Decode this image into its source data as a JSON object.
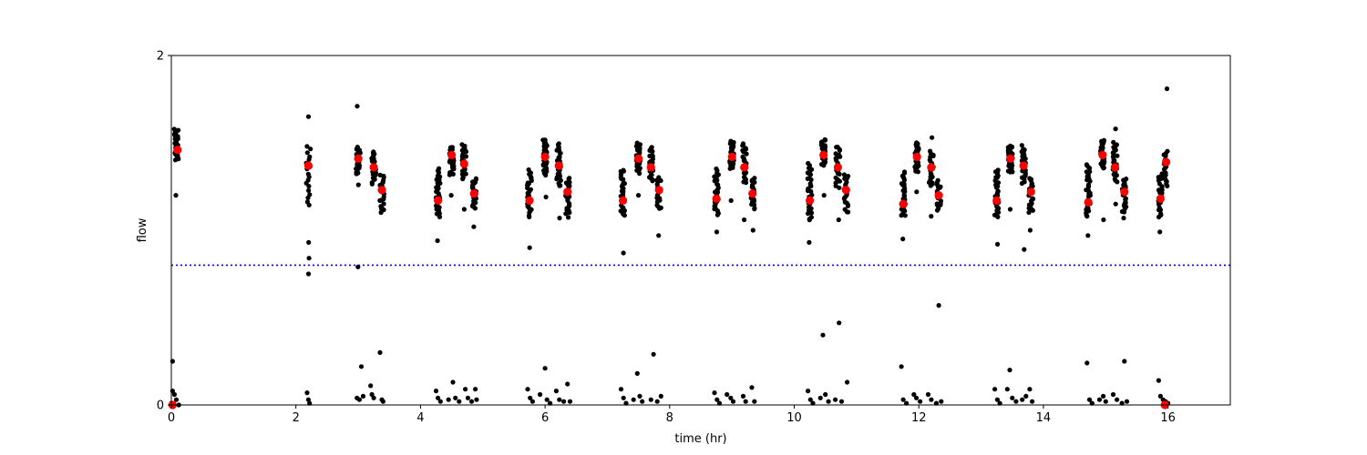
{
  "chart_data": {
    "type": "scatter",
    "title": "",
    "xlabel": "time (hr)",
    "ylabel": "flow",
    "xlim": [
      0,
      17
    ],
    "ylim": [
      0,
      2
    ],
    "xticks": [
      0,
      2,
      4,
      6,
      8,
      10,
      12,
      14,
      16
    ],
    "yticks": [
      0,
      2
    ],
    "grid": false,
    "colors": {
      "samples": "#000000",
      "means": "#ff0000",
      "threshold": "#0000ff"
    },
    "threshold": {
      "y": 0.8,
      "style": "dotted"
    },
    "sample_clusters": [
      {
        "x": 0.08,
        "low": 1.4,
        "high": 1.58,
        "n": 30,
        "outliers": [
          1.2
        ]
      },
      {
        "x": 2.2,
        "low": 1.15,
        "high": 1.48,
        "n": 18,
        "outliers": [
          1.65,
          0.93,
          0.84,
          0.75
        ]
      },
      {
        "x": 3.0,
        "low": 1.32,
        "high": 1.47,
        "n": 28,
        "outliers": [
          1.71,
          1.26,
          0.79
        ]
      },
      {
        "x": 3.25,
        "low": 1.27,
        "high": 1.45,
        "n": 22,
        "outliers": []
      },
      {
        "x": 3.38,
        "low": 1.1,
        "high": 1.32,
        "n": 22,
        "outliers": []
      },
      {
        "x": 4.28,
        "low": 1.08,
        "high": 1.35,
        "n": 30,
        "outliers": [
          0.94
        ]
      },
      {
        "x": 4.5,
        "low": 1.32,
        "high": 1.48,
        "n": 28,
        "outliers": [
          1.2
        ]
      },
      {
        "x": 4.7,
        "low": 1.3,
        "high": 1.49,
        "n": 26,
        "outliers": [
          1.12
        ]
      },
      {
        "x": 4.86,
        "low": 1.12,
        "high": 1.3,
        "n": 20,
        "outliers": [
          1.02
        ]
      },
      {
        "x": 5.75,
        "low": 1.08,
        "high": 1.34,
        "n": 30,
        "outliers": [
          0.9
        ]
      },
      {
        "x": 6.0,
        "low": 1.32,
        "high": 1.52,
        "n": 32,
        "outliers": [
          1.19
        ]
      },
      {
        "x": 6.22,
        "low": 1.25,
        "high": 1.5,
        "n": 28,
        "outliers": [
          1.07
        ]
      },
      {
        "x": 6.36,
        "low": 1.08,
        "high": 1.3,
        "n": 24,
        "outliers": []
      },
      {
        "x": 7.25,
        "low": 1.08,
        "high": 1.35,
        "n": 30,
        "outliers": [
          0.87
        ]
      },
      {
        "x": 7.5,
        "low": 1.33,
        "high": 1.5,
        "n": 28,
        "outliers": [
          1.2
        ]
      },
      {
        "x": 7.7,
        "low": 1.28,
        "high": 1.48,
        "n": 24,
        "outliers": []
      },
      {
        "x": 7.83,
        "low": 1.12,
        "high": 1.3,
        "n": 20,
        "outliers": [
          0.97
        ]
      },
      {
        "x": 8.75,
        "low": 1.08,
        "high": 1.35,
        "n": 30,
        "outliers": [
          0.99
        ]
      },
      {
        "x": 9.0,
        "low": 1.35,
        "high": 1.51,
        "n": 30,
        "outliers": [
          1.17
        ]
      },
      {
        "x": 9.2,
        "low": 1.27,
        "high": 1.5,
        "n": 26,
        "outliers": [
          1.06
        ]
      },
      {
        "x": 9.33,
        "low": 1.12,
        "high": 1.3,
        "n": 20,
        "outliers": [
          1.0
        ]
      },
      {
        "x": 10.25,
        "low": 1.06,
        "high": 1.38,
        "n": 34,
        "outliers": [
          0.93
        ]
      },
      {
        "x": 10.47,
        "low": 1.37,
        "high": 1.52,
        "n": 32,
        "outliers": [
          1.2
        ]
      },
      {
        "x": 10.7,
        "low": 1.25,
        "high": 1.48,
        "n": 26,
        "outliers": [
          1.06
        ]
      },
      {
        "x": 10.83,
        "low": 1.1,
        "high": 1.32,
        "n": 22,
        "outliers": []
      },
      {
        "x": 11.75,
        "low": 1.08,
        "high": 1.33,
        "n": 28,
        "outliers": [
          0.95
        ]
      },
      {
        "x": 11.97,
        "low": 1.33,
        "high": 1.5,
        "n": 30,
        "outliers": [
          1.22
        ]
      },
      {
        "x": 12.2,
        "low": 1.25,
        "high": 1.45,
        "n": 24,
        "outliers": [
          1.53,
          1.08
        ]
      },
      {
        "x": 12.32,
        "low": 1.12,
        "high": 1.28,
        "n": 20,
        "outliers": []
      },
      {
        "x": 13.25,
        "low": 1.08,
        "high": 1.35,
        "n": 30,
        "outliers": [
          0.92
        ]
      },
      {
        "x": 13.47,
        "low": 1.33,
        "high": 1.49,
        "n": 30,
        "outliers": [
          1.12
        ]
      },
      {
        "x": 13.68,
        "low": 1.27,
        "high": 1.48,
        "n": 26,
        "outliers": [
          0.89
        ]
      },
      {
        "x": 13.8,
        "low": 1.1,
        "high": 1.3,
        "n": 22,
        "outliers": [
          1.0
        ]
      },
      {
        "x": 14.72,
        "low": 1.08,
        "high": 1.38,
        "n": 32,
        "outliers": [
          0.97
        ]
      },
      {
        "x": 14.95,
        "low": 1.35,
        "high": 1.52,
        "n": 34,
        "outliers": [
          1.06
        ]
      },
      {
        "x": 15.15,
        "low": 1.28,
        "high": 1.5,
        "n": 26,
        "outliers": [
          1.58,
          1.15
        ]
      },
      {
        "x": 15.3,
        "low": 1.1,
        "high": 1.3,
        "n": 22,
        "outliers": [
          1.07
        ]
      },
      {
        "x": 15.88,
        "low": 1.08,
        "high": 1.32,
        "n": 24,
        "outliers": [
          0.99
        ]
      },
      {
        "x": 15.97,
        "low": 1.25,
        "high": 1.45,
        "n": 20,
        "outliers": [
          1.81
        ]
      }
    ],
    "low_flow_points": [
      [
        0.02,
        0.25
      ],
      [
        0.02,
        0.08
      ],
      [
        0.05,
        0.06
      ],
      [
        0.08,
        0.03
      ],
      [
        0.12,
        0.0
      ],
      [
        0.0,
        0.01
      ],
      [
        2.18,
        0.07
      ],
      [
        2.2,
        0.03
      ],
      [
        2.22,
        0.01
      ],
      [
        2.98,
        0.04
      ],
      [
        3.02,
        0.03
      ],
      [
        3.05,
        0.22
      ],
      [
        3.08,
        0.05
      ],
      [
        3.2,
        0.11
      ],
      [
        3.22,
        0.06
      ],
      [
        3.25,
        0.04
      ],
      [
        3.35,
        0.3
      ],
      [
        3.38,
        0.03
      ],
      [
        3.4,
        0.02
      ],
      [
        4.25,
        0.08
      ],
      [
        4.28,
        0.04
      ],
      [
        4.32,
        0.02
      ],
      [
        4.45,
        0.03
      ],
      [
        4.52,
        0.13
      ],
      [
        4.56,
        0.04
      ],
      [
        4.62,
        0.02
      ],
      [
        4.72,
        0.09
      ],
      [
        4.76,
        0.04
      ],
      [
        4.82,
        0.02
      ],
      [
        4.88,
        0.09
      ],
      [
        4.9,
        0.03
      ],
      [
        5.72,
        0.09
      ],
      [
        5.76,
        0.04
      ],
      [
        5.8,
        0.02
      ],
      [
        5.92,
        0.06
      ],
      [
        6.0,
        0.21
      ],
      [
        6.03,
        0.03
      ],
      [
        6.08,
        0.01
      ],
      [
        6.18,
        0.08
      ],
      [
        6.23,
        0.03
      ],
      [
        6.3,
        0.02
      ],
      [
        6.36,
        0.12
      ],
      [
        6.4,
        0.02
      ],
      [
        7.22,
        0.09
      ],
      [
        7.26,
        0.04
      ],
      [
        7.3,
        0.01
      ],
      [
        7.42,
        0.03
      ],
      [
        7.48,
        0.18
      ],
      [
        7.52,
        0.05
      ],
      [
        7.56,
        0.02
      ],
      [
        7.7,
        0.03
      ],
      [
        7.74,
        0.29
      ],
      [
        7.8,
        0.02
      ],
      [
        7.86,
        0.05
      ],
      [
        8.72,
        0.07
      ],
      [
        8.76,
        0.03
      ],
      [
        8.8,
        0.01
      ],
      [
        8.92,
        0.06
      ],
      [
        8.98,
        0.04
      ],
      [
        9.02,
        0.02
      ],
      [
        9.18,
        0.05
      ],
      [
        9.22,
        0.02
      ],
      [
        9.32,
        0.1
      ],
      [
        9.36,
        0.02
      ],
      [
        10.22,
        0.08
      ],
      [
        10.26,
        0.03
      ],
      [
        10.3,
        0.01
      ],
      [
        10.42,
        0.04
      ],
      [
        10.46,
        0.4
      ],
      [
        10.5,
        0.06
      ],
      [
        10.55,
        0.02
      ],
      [
        10.66,
        0.03
      ],
      [
        10.72,
        0.47
      ],
      [
        10.76,
        0.02
      ],
      [
        10.85,
        0.13
      ],
      [
        11.72,
        0.22
      ],
      [
        11.75,
        0.03
      ],
      [
        11.8,
        0.01
      ],
      [
        11.92,
        0.06
      ],
      [
        11.96,
        0.04
      ],
      [
        12.02,
        0.02
      ],
      [
        12.15,
        0.06
      ],
      [
        12.2,
        0.03
      ],
      [
        12.28,
        0.01
      ],
      [
        12.32,
        0.57
      ],
      [
        12.36,
        0.02
      ],
      [
        13.22,
        0.09
      ],
      [
        13.26,
        0.03
      ],
      [
        13.3,
        0.01
      ],
      [
        13.42,
        0.09
      ],
      [
        13.46,
        0.2
      ],
      [
        13.5,
        0.04
      ],
      [
        13.56,
        0.02
      ],
      [
        13.66,
        0.03
      ],
      [
        13.72,
        0.05
      ],
      [
        13.78,
        0.09
      ],
      [
        13.82,
        0.02
      ],
      [
        14.7,
        0.24
      ],
      [
        14.74,
        0.03
      ],
      [
        14.78,
        0.01
      ],
      [
        14.9,
        0.03
      ],
      [
        14.96,
        0.05
      ],
      [
        15.0,
        0.02
      ],
      [
        15.12,
        0.06
      ],
      [
        15.18,
        0.03
      ],
      [
        15.26,
        0.01
      ],
      [
        15.3,
        0.25
      ],
      [
        15.34,
        0.02
      ],
      [
        15.85,
        0.14
      ],
      [
        15.88,
        0.05
      ],
      [
        15.92,
        0.03
      ],
      [
        15.96,
        0.02
      ],
      [
        16.0,
        0.01
      ]
    ],
    "mean_points": [
      [
        0.1,
        1.46
      ],
      [
        2.2,
        1.37
      ],
      [
        3.0,
        1.41
      ],
      [
        3.25,
        1.36
      ],
      [
        3.38,
        1.23
      ],
      [
        4.28,
        1.17
      ],
      [
        4.5,
        1.43
      ],
      [
        4.7,
        1.38
      ],
      [
        4.86,
        1.21
      ],
      [
        5.75,
        1.17
      ],
      [
        6.0,
        1.42
      ],
      [
        6.22,
        1.37
      ],
      [
        6.36,
        1.22
      ],
      [
        7.25,
        1.17
      ],
      [
        7.5,
        1.41
      ],
      [
        7.7,
        1.36
      ],
      [
        7.83,
        1.23
      ],
      [
        8.75,
        1.18
      ],
      [
        9.0,
        1.42
      ],
      [
        9.2,
        1.36
      ],
      [
        9.33,
        1.21
      ],
      [
        10.25,
        1.17
      ],
      [
        10.47,
        1.43
      ],
      [
        10.7,
        1.36
      ],
      [
        10.83,
        1.23
      ],
      [
        11.75,
        1.15
      ],
      [
        11.97,
        1.42
      ],
      [
        12.2,
        1.36
      ],
      [
        12.32,
        1.2
      ],
      [
        13.25,
        1.17
      ],
      [
        13.47,
        1.41
      ],
      [
        13.68,
        1.37
      ],
      [
        13.8,
        1.22
      ],
      [
        14.72,
        1.16
      ],
      [
        14.95,
        1.43
      ],
      [
        15.15,
        1.36
      ],
      [
        15.3,
        1.22
      ],
      [
        15.88,
        1.18
      ],
      [
        15.97,
        1.39
      ],
      [
        0.02,
        0.0
      ],
      [
        15.95,
        0.0
      ]
    ]
  }
}
